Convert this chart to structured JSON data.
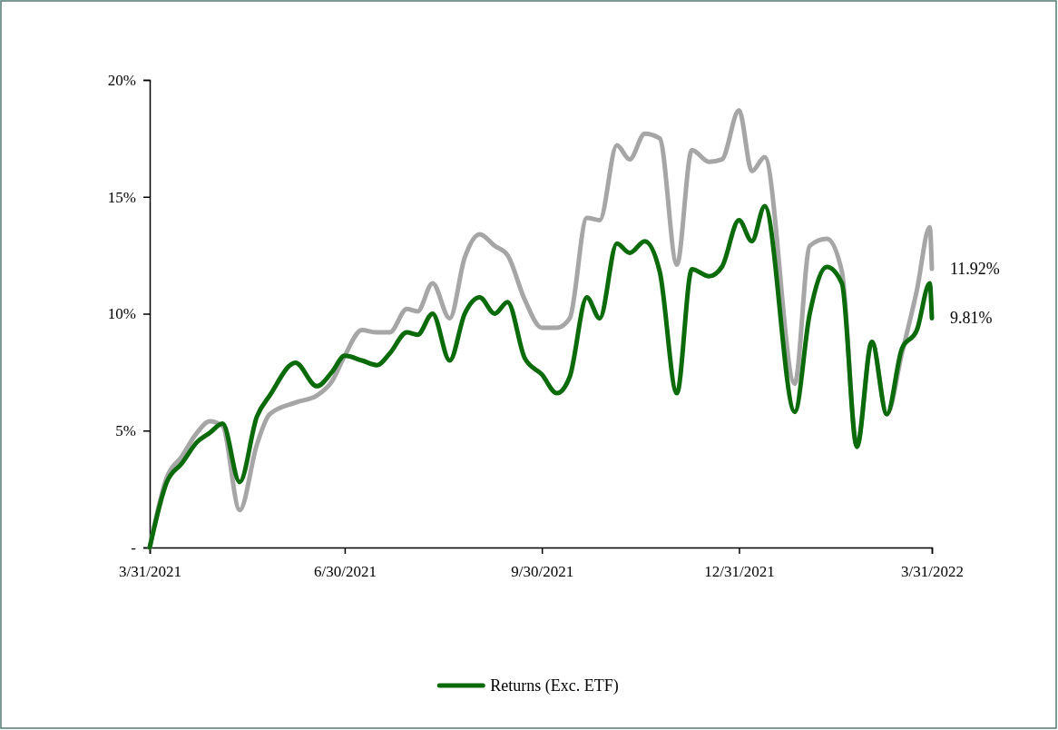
{
  "chart_data": {
    "type": "line",
    "x": [
      "2021-03-31",
      "2021-04-08",
      "2021-04-15",
      "2021-04-22",
      "2021-04-28",
      "2021-05-04",
      "2021-05-12",
      "2021-05-20",
      "2021-05-26",
      "2021-06-07",
      "2021-06-17",
      "2021-06-24",
      "2021-06-30",
      "2021-07-08",
      "2021-07-15",
      "2021-07-21",
      "2021-07-29",
      "2021-08-03",
      "2021-08-10",
      "2021-08-18",
      "2021-08-25",
      "2021-09-01",
      "2021-09-08",
      "2021-09-14",
      "2021-09-22",
      "2021-09-30",
      "2021-10-07",
      "2021-10-13",
      "2021-10-21",
      "2021-10-27",
      "2021-11-04",
      "2021-11-10",
      "2021-11-17",
      "2021-11-24",
      "2021-12-02",
      "2021-12-09",
      "2021-12-17",
      "2021-12-23",
      "2021-12-31",
      "2022-01-06",
      "2022-01-12",
      "2022-01-26",
      "2022-02-02",
      "2022-02-10",
      "2022-02-17",
      "2022-02-24",
      "2022-03-03",
      "2022-03-10",
      "2022-03-17",
      "2022-03-24",
      "2022-03-30",
      "2022-03-31"
    ],
    "series": [
      {
        "name": "Returns (Exc. ETF)",
        "color": "#0b6b0b",
        "values": [
          0,
          2.8,
          3.6,
          4.5,
          4.9,
          5.3,
          2.8,
          5.6,
          6.5,
          7.9,
          6.9,
          7.5,
          8.2,
          8.0,
          7.8,
          8.3,
          9.2,
          9.1,
          10.0,
          8.0,
          10.0,
          10.7,
          10.0,
          10.5,
          8.1,
          7.4,
          6.6,
          7.3,
          10.7,
          9.8,
          13.0,
          12.6,
          13.1,
          11.8,
          6.6,
          11.9,
          11.6,
          12.0,
          14.0,
          13.1,
          14.6,
          5.8,
          10.0,
          12.0,
          11.3,
          4.3,
          8.8,
          5.7,
          8.5,
          9.3,
          11.3,
          9.81
        ]
      },
      {
        "color": "#a6a6a6",
        "values": [
          0,
          3.0,
          3.9,
          4.9,
          5.4,
          5.2,
          1.6,
          4.4,
          5.7,
          6.2,
          6.5,
          7.1,
          8.2,
          9.3,
          9.2,
          9.2,
          10.2,
          10.1,
          11.3,
          9.8,
          12.4,
          13.4,
          12.9,
          12.5,
          10.6,
          9.4,
          9.4,
          9.8,
          14.1,
          14.0,
          17.2,
          16.6,
          17.7,
          17.5,
          12.1,
          17.0,
          16.5,
          16.6,
          18.7,
          16.1,
          16.7,
          7.0,
          12.9,
          13.2,
          11.8,
          4.35,
          8.8,
          5.7,
          8.3,
          11.0,
          13.7,
          11.92
        ]
      }
    ],
    "xlim": [
      "2021-03-31",
      "2022-03-31"
    ],
    "xticks": [
      {
        "value": "2021-03-31",
        "label": "3/31/2021"
      },
      {
        "value": "2021-06-30",
        "label": "6/30/2021"
      },
      {
        "value": "2021-09-30",
        "label": "9/30/2021"
      },
      {
        "value": "2021-12-31",
        "label": "12/31/2021"
      },
      {
        "value": "2022-03-31",
        "label": "3/31/2022"
      }
    ],
    "ylim": [
      0,
      20
    ],
    "yticks": [
      {
        "value": 0,
        "label": "-"
      },
      {
        "value": 5,
        "label": "5%"
      },
      {
        "value": 10,
        "label": "10%"
      },
      {
        "value": 15,
        "label": "15%"
      },
      {
        "value": 20,
        "label": "20%"
      }
    ],
    "annotations": [
      {
        "text": "11.92%",
        "x": "2022-03-31",
        "y": 11.92
      },
      {
        "text": "9.81%",
        "x": "2022-03-31",
        "y": 9.81
      }
    ],
    "grid": false,
    "legend": "bottom",
    "marker": "none",
    "line_style": "solid"
  }
}
